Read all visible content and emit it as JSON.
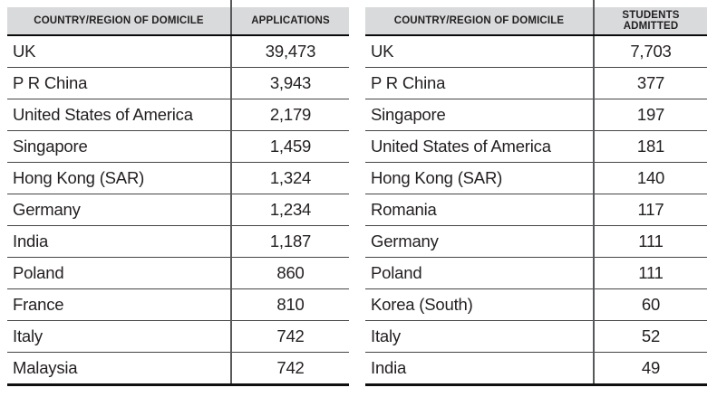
{
  "colors": {
    "header_bg": "#d8dadc",
    "text": "#231f20",
    "column_divider": "#58595b",
    "row_line": "#454545",
    "strong_line": "#0a0a0a"
  },
  "tables": [
    {
      "id": "applications",
      "columns": [
        "COUNTRY/REGION OF DOMICILE",
        "APPLICATIONS"
      ],
      "rows": [
        [
          "UK",
          "39,473"
        ],
        [
          "P R China",
          "3,943"
        ],
        [
          "United States of America",
          "2,179"
        ],
        [
          "Singapore",
          "1,459"
        ],
        [
          "Hong Kong (SAR)",
          "1,324"
        ],
        [
          "Germany",
          "1,234"
        ],
        [
          "India",
          "1,187"
        ],
        [
          "Poland",
          "860"
        ],
        [
          "France",
          "810"
        ],
        [
          "Italy",
          "742"
        ],
        [
          "Malaysia",
          "742"
        ]
      ]
    },
    {
      "id": "students_admitted",
      "columns": [
        "COUNTRY/REGION OF DOMICILE",
        "STUDENTS ADMITTED"
      ],
      "rows": [
        [
          "UK",
          "7,703"
        ],
        [
          "P R China",
          "377"
        ],
        [
          "Singapore",
          "197"
        ],
        [
          "United States of America",
          "181"
        ],
        [
          "Hong Kong (SAR)",
          "140"
        ],
        [
          "Romania",
          "117"
        ],
        [
          "Germany",
          "111"
        ],
        [
          "Poland",
          "111"
        ],
        [
          "Korea (South)",
          "60"
        ],
        [
          "Italy",
          "52"
        ],
        [
          "India",
          "49"
        ]
      ]
    }
  ],
  "chart_data": [
    {
      "type": "table",
      "title": "",
      "columns": [
        "COUNTRY/REGION OF DOMICILE",
        "APPLICATIONS"
      ],
      "rows": [
        [
          "UK",
          39473
        ],
        [
          "P R China",
          3943
        ],
        [
          "United States of America",
          2179
        ],
        [
          "Singapore",
          1459
        ],
        [
          "Hong Kong (SAR)",
          1324
        ],
        [
          "Germany",
          1234
        ],
        [
          "India",
          1187
        ],
        [
          "Poland",
          860
        ],
        [
          "France",
          810
        ],
        [
          "Italy",
          742
        ],
        [
          "Malaysia",
          742
        ]
      ]
    },
    {
      "type": "table",
      "title": "",
      "columns": [
        "COUNTRY/REGION OF DOMICILE",
        "STUDENTS ADMITTED"
      ],
      "rows": [
        [
          "UK",
          7703
        ],
        [
          "P R China",
          377
        ],
        [
          "Singapore",
          197
        ],
        [
          "United States of America",
          181
        ],
        [
          "Hong Kong (SAR)",
          140
        ],
        [
          "Romania",
          117
        ],
        [
          "Germany",
          111
        ],
        [
          "Poland",
          111
        ],
        [
          "Korea (South)",
          60
        ],
        [
          "Italy",
          52
        ],
        [
          "India",
          49
        ]
      ]
    }
  ]
}
